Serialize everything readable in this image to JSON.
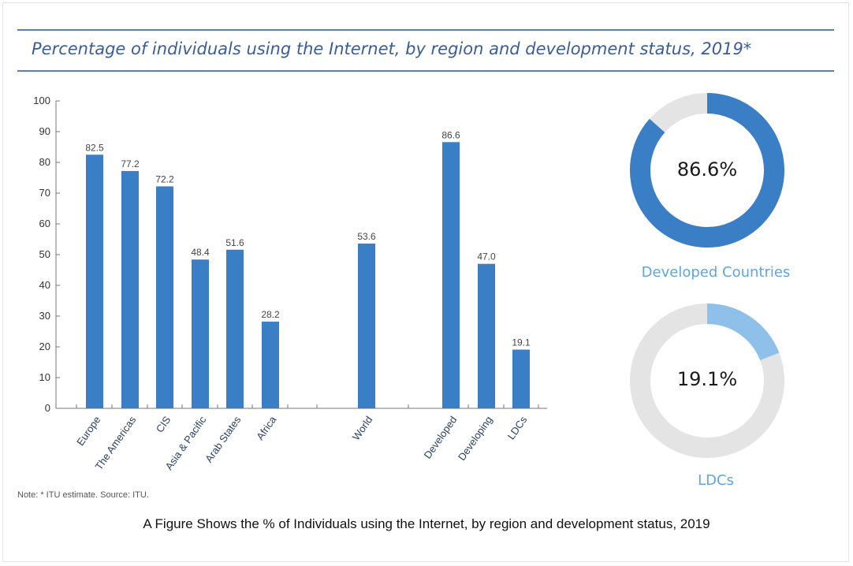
{
  "title": "Percentage of individuals using the Internet, by region and development status, 2019*",
  "note": "Note: * ITU estimate.    Source: ITU.",
  "caption": "A Figure Shows the % of Individuals using the Internet, by region and development status, 2019",
  "colors": {
    "bar": "#3a7fc6",
    "title": "#3a5d96",
    "donut_developed": "#3a7fc6",
    "donut_ldc": "#8ec0ea",
    "donut_track": "#e4e4e4",
    "label_light_blue": "#5fa6df"
  },
  "chart_data": [
    {
      "type": "bar",
      "categories": [
        "Europe",
        "The Americas",
        "CIS",
        "Asia & Pacific",
        "Arab States",
        "Africa",
        "World",
        "Developed",
        "Developing",
        "LDCs"
      ],
      "values": [
        82.5,
        77.2,
        72.2,
        48.4,
        51.6,
        28.2,
        53.6,
        86.6,
        47.0,
        19.1
      ],
      "value_labels": [
        "82.5",
        "77.2",
        "72.2",
        "48.4",
        "51.6",
        "28.2",
        "53.6",
        "86.6",
        "47.0",
        "19.1"
      ],
      "ylim": [
        0,
        100
      ],
      "yticks": [
        0,
        10,
        20,
        30,
        40,
        50,
        60,
        70,
        80,
        90,
        100
      ],
      "xlabel": "",
      "ylabel": "",
      "grid": false
    },
    {
      "type": "pie",
      "variant": "donut",
      "value": 86.6,
      "center_label": "86.6%",
      "label": "Developed Countries"
    },
    {
      "type": "pie",
      "variant": "donut",
      "value": 19.1,
      "center_label": "19.1%",
      "label": "LDCs"
    }
  ]
}
